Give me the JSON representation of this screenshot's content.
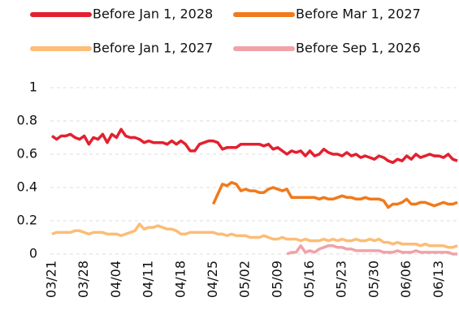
{
  "chart_data": {
    "type": "line",
    "categories": [
      "03/21",
      null,
      null,
      null,
      null,
      null,
      null,
      "03/28",
      null,
      null,
      null,
      null,
      null,
      null,
      "04/04",
      null,
      null,
      null,
      null,
      null,
      null,
      "04/11",
      null,
      null,
      null,
      null,
      null,
      null,
      "04/18",
      null,
      null,
      null,
      null,
      null,
      null,
      "04/25",
      null,
      null,
      null,
      null,
      null,
      null,
      "05/02",
      null,
      null,
      null,
      null,
      null,
      null,
      "05/09",
      null,
      null,
      null,
      null,
      null,
      null,
      "05/16",
      null,
      null,
      null,
      null,
      null,
      null,
      "05/23",
      null,
      null,
      null,
      null,
      null,
      null,
      "05/30",
      null,
      null,
      null,
      null,
      null,
      null,
      "06/06",
      null,
      null,
      null,
      null,
      null,
      null,
      "06/13",
      null,
      null,
      null,
      null
    ],
    "series": [
      {
        "name": "Before Jan 1, 2028",
        "color": "#e3202f",
        "values": [
          0.71,
          0.69,
          0.71,
          0.71,
          0.72,
          0.7,
          0.69,
          0.71,
          0.66,
          0.7,
          0.69,
          0.72,
          0.67,
          0.72,
          0.7,
          0.75,
          0.71,
          0.7,
          0.7,
          0.69,
          0.67,
          0.68,
          0.67,
          0.67,
          0.67,
          0.66,
          0.68,
          0.66,
          0.68,
          0.66,
          0.62,
          0.62,
          0.66,
          0.67,
          0.68,
          0.68,
          0.67,
          0.63,
          0.64,
          0.64,
          0.64,
          0.66,
          0.66,
          0.66,
          0.66,
          0.66,
          0.65,
          0.66,
          0.63,
          0.64,
          0.62,
          0.6,
          0.62,
          0.61,
          0.62,
          0.59,
          0.62,
          0.59,
          0.6,
          0.63,
          0.61,
          0.6,
          0.6,
          0.59,
          0.61,
          0.59,
          0.6,
          0.58,
          0.59,
          0.58,
          0.57,
          0.59,
          0.58,
          0.56,
          0.55,
          0.57,
          0.56,
          0.59,
          0.57,
          0.6,
          0.58,
          0.59,
          0.6,
          0.59,
          0.59,
          0.58,
          0.6,
          0.57,
          0.56
        ]
      },
      {
        "name": "Before Mar 1, 2027",
        "color": "#f07a1c",
        "values": [
          null,
          null,
          null,
          null,
          null,
          null,
          null,
          null,
          null,
          null,
          null,
          null,
          null,
          null,
          null,
          null,
          null,
          null,
          null,
          null,
          null,
          null,
          null,
          null,
          null,
          null,
          null,
          null,
          null,
          null,
          null,
          null,
          null,
          null,
          null,
          0.3,
          0.36,
          0.42,
          0.41,
          0.43,
          0.42,
          0.38,
          0.39,
          0.38,
          0.38,
          0.37,
          0.37,
          0.39,
          0.4,
          0.39,
          0.38,
          0.39,
          0.34,
          0.34,
          0.34,
          0.34,
          0.34,
          0.34,
          0.33,
          0.34,
          0.33,
          0.33,
          0.34,
          0.35,
          0.34,
          0.34,
          0.33,
          0.33,
          0.34,
          0.33,
          0.33,
          0.33,
          0.32,
          0.28,
          0.3,
          0.3,
          0.31,
          0.33,
          0.3,
          0.3,
          0.31,
          0.31,
          0.3,
          0.29,
          0.3,
          0.31,
          0.3,
          0.3,
          0.31
        ]
      },
      {
        "name": "Before Jan 1, 2027",
        "color": "#fbbd78",
        "values": [
          0.12,
          0.13,
          0.13,
          0.13,
          0.13,
          0.14,
          0.14,
          0.13,
          0.12,
          0.13,
          0.13,
          0.13,
          0.12,
          0.12,
          0.12,
          0.11,
          0.12,
          0.13,
          0.14,
          0.18,
          0.15,
          0.16,
          0.16,
          0.17,
          0.16,
          0.15,
          0.15,
          0.14,
          0.12,
          0.12,
          0.13,
          0.13,
          0.13,
          0.13,
          0.13,
          0.13,
          0.12,
          0.12,
          0.11,
          0.12,
          0.11,
          0.11,
          0.11,
          0.1,
          0.1,
          0.1,
          0.11,
          0.1,
          0.09,
          0.09,
          0.1,
          0.09,
          0.09,
          0.09,
          0.08,
          0.09,
          0.08,
          0.08,
          0.08,
          0.09,
          0.08,
          0.09,
          0.08,
          0.09,
          0.08,
          0.08,
          0.09,
          0.08,
          0.08,
          0.09,
          0.08,
          0.09,
          0.07,
          0.07,
          0.06,
          0.07,
          0.06,
          0.06,
          0.06,
          0.06,
          0.05,
          0.06,
          0.05,
          0.05,
          0.05,
          0.05,
          0.04,
          0.04,
          0.05
        ]
      },
      {
        "name": "Before Sep 1, 2026",
        "color": "#f0a3a7",
        "values": [
          null,
          null,
          null,
          null,
          null,
          null,
          null,
          null,
          null,
          null,
          null,
          null,
          null,
          null,
          null,
          null,
          null,
          null,
          null,
          null,
          null,
          null,
          null,
          null,
          null,
          null,
          null,
          null,
          null,
          null,
          null,
          null,
          null,
          null,
          null,
          null,
          null,
          null,
          null,
          null,
          null,
          null,
          null,
          null,
          null,
          null,
          null,
          null,
          null,
          null,
          null,
          0.0,
          0.01,
          0.01,
          0.05,
          0.01,
          0.02,
          0.01,
          0.03,
          0.04,
          0.05,
          0.05,
          0.04,
          0.04,
          0.03,
          0.03,
          0.02,
          0.02,
          0.02,
          0.02,
          0.02,
          0.02,
          0.01,
          0.01,
          0.01,
          0.02,
          0.01,
          0.01,
          0.01,
          0.02,
          0.01,
          0.01,
          0.01,
          0.01,
          0.01,
          0.01,
          0.01,
          0.0,
          0.0
        ]
      }
    ],
    "ylim": [
      0,
      1
    ],
    "yticks": [
      0,
      0.2,
      0.4,
      0.6,
      0.8,
      1
    ],
    "grid": true
  }
}
